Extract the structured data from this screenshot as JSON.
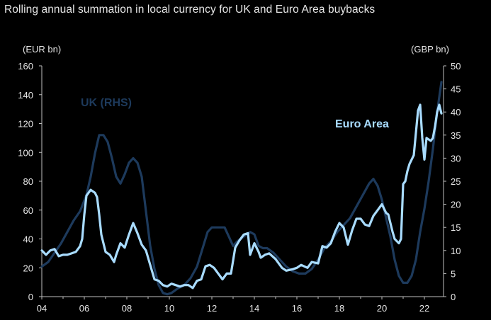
{
  "title": "Rolling annual summation in local currency for UK and Euro Area buybacks",
  "chart_data": {
    "type": "line",
    "title": "Rolling annual summation in local currency for UK and Euro Area buybacks",
    "x_ticks": [
      "04",
      "06",
      "08",
      "10",
      "12",
      "14",
      "16",
      "18",
      "20",
      "22"
    ],
    "y_left": {
      "label": "(EUR bn)",
      "ticks": [
        0,
        20,
        40,
        60,
        80,
        100,
        120,
        140,
        160
      ],
      "range": [
        0,
        160
      ]
    },
    "y_right": {
      "label": "(GBP bn)",
      "ticks": [
        0,
        5,
        10,
        15,
        20,
        25,
        30,
        35,
        40,
        45,
        50
      ],
      "range": [
        0,
        50
      ]
    },
    "x_range": [
      2004.0,
      2022.9
    ],
    "grid": false,
    "series": [
      {
        "name": "UK (RHS)",
        "axis": "right",
        "color": "#1d3a5c",
        "points": [
          [
            2004.0,
            6.5
          ],
          [
            2004.3,
            7.5
          ],
          [
            2004.6,
            9.5
          ],
          [
            2004.9,
            11.5
          ],
          [
            2005.2,
            14
          ],
          [
            2005.5,
            16.5
          ],
          [
            2005.8,
            18.5
          ],
          [
            2006.1,
            22
          ],
          [
            2006.3,
            26
          ],
          [
            2006.5,
            31
          ],
          [
            2006.7,
            35
          ],
          [
            2006.9,
            35
          ],
          [
            2007.1,
            33.5
          ],
          [
            2007.3,
            30
          ],
          [
            2007.5,
            26
          ],
          [
            2007.7,
            24.5
          ],
          [
            2007.9,
            26.5
          ],
          [
            2008.1,
            29
          ],
          [
            2008.3,
            30
          ],
          [
            2008.5,
            29
          ],
          [
            2008.7,
            26
          ],
          [
            2008.9,
            18.5
          ],
          [
            2009.1,
            11
          ],
          [
            2009.3,
            6
          ],
          [
            2009.5,
            2.5
          ],
          [
            2009.7,
            0.8
          ],
          [
            2009.9,
            0.5
          ],
          [
            2010.1,
            0.8
          ],
          [
            2010.4,
            1.8
          ],
          [
            2010.7,
            2.5
          ],
          [
            2011.0,
            4
          ],
          [
            2011.3,
            6.5
          ],
          [
            2011.6,
            11
          ],
          [
            2011.8,
            14
          ],
          [
            2012.0,
            15
          ],
          [
            2012.3,
            15
          ],
          [
            2012.6,
            15
          ],
          [
            2012.8,
            13
          ],
          [
            2013.0,
            11
          ],
          [
            2013.2,
            12
          ],
          [
            2013.5,
            13
          ],
          [
            2013.8,
            14
          ],
          [
            2014.0,
            13.5
          ],
          [
            2014.2,
            11
          ],
          [
            2014.4,
            10.5
          ],
          [
            2014.6,
            10.5
          ],
          [
            2014.9,
            9.5
          ],
          [
            2015.2,
            8
          ],
          [
            2015.5,
            6.5
          ],
          [
            2015.8,
            5.5
          ],
          [
            2016.1,
            5
          ],
          [
            2016.4,
            5
          ],
          [
            2016.7,
            6
          ],
          [
            2017.0,
            8
          ],
          [
            2017.3,
            10.5
          ],
          [
            2017.6,
            12
          ],
          [
            2017.9,
            14
          ],
          [
            2018.2,
            15.5
          ],
          [
            2018.5,
            17
          ],
          [
            2018.8,
            19.5
          ],
          [
            2019.1,
            22
          ],
          [
            2019.4,
            24.5
          ],
          [
            2019.6,
            25.5
          ],
          [
            2019.8,
            24
          ],
          [
            2020.0,
            21
          ],
          [
            2020.2,
            17
          ],
          [
            2020.4,
            13
          ],
          [
            2020.6,
            8
          ],
          [
            2020.8,
            4.5
          ],
          [
            2021.0,
            3
          ],
          [
            2021.2,
            3
          ],
          [
            2021.4,
            4.5
          ],
          [
            2021.6,
            8
          ],
          [
            2021.8,
            14
          ],
          [
            2022.0,
            19
          ],
          [
            2022.2,
            25
          ],
          [
            2022.4,
            32
          ],
          [
            2022.6,
            40
          ],
          [
            2022.8,
            46.5
          ]
        ]
      },
      {
        "name": "Euro Area",
        "axis": "left",
        "color": "#a9dcff",
        "points": [
          [
            2004.0,
            32
          ],
          [
            2004.2,
            29
          ],
          [
            2004.4,
            32
          ],
          [
            2004.6,
            33
          ],
          [
            2004.8,
            28
          ],
          [
            2005.0,
            29
          ],
          [
            2005.2,
            29
          ],
          [
            2005.4,
            30
          ],
          [
            2005.6,
            31
          ],
          [
            2005.8,
            35
          ],
          [
            2005.9,
            40
          ],
          [
            2006.0,
            57
          ],
          [
            2006.1,
            70
          ],
          [
            2006.3,
            74
          ],
          [
            2006.5,
            72
          ],
          [
            2006.6,
            69
          ],
          [
            2006.7,
            57
          ],
          [
            2006.8,
            43
          ],
          [
            2006.9,
            37
          ],
          [
            2007.0,
            31
          ],
          [
            2007.2,
            29
          ],
          [
            2007.4,
            24
          ],
          [
            2007.5,
            29
          ],
          [
            2007.7,
            37
          ],
          [
            2007.9,
            34
          ],
          [
            2008.1,
            43
          ],
          [
            2008.3,
            51
          ],
          [
            2008.5,
            44
          ],
          [
            2008.7,
            36
          ],
          [
            2008.9,
            32
          ],
          [
            2009.1,
            22
          ],
          [
            2009.3,
            12
          ],
          [
            2009.5,
            11
          ],
          [
            2009.7,
            8
          ],
          [
            2009.9,
            7
          ],
          [
            2010.1,
            9
          ],
          [
            2010.3,
            8
          ],
          [
            2010.5,
            7
          ],
          [
            2010.7,
            8
          ],
          [
            2010.9,
            8
          ],
          [
            2011.1,
            6
          ],
          [
            2011.3,
            11
          ],
          [
            2011.5,
            12
          ],
          [
            2011.7,
            21
          ],
          [
            2011.9,
            22
          ],
          [
            2012.1,
            20
          ],
          [
            2012.3,
            16
          ],
          [
            2012.5,
            12
          ],
          [
            2012.7,
            16
          ],
          [
            2012.9,
            16
          ],
          [
            2013.1,
            34
          ],
          [
            2013.3,
            39
          ],
          [
            2013.5,
            43
          ],
          [
            2013.7,
            44
          ],
          [
            2013.8,
            29
          ],
          [
            2014.0,
            37
          ],
          [
            2014.2,
            31
          ],
          [
            2014.3,
            27
          ],
          [
            2014.5,
            29
          ],
          [
            2014.7,
            30
          ],
          [
            2015.0,
            26
          ],
          [
            2015.3,
            20
          ],
          [
            2015.5,
            18
          ],
          [
            2015.8,
            19
          ],
          [
            2016.0,
            20
          ],
          [
            2016.2,
            22
          ],
          [
            2016.5,
            20
          ],
          [
            2016.7,
            24
          ],
          [
            2017.0,
            23
          ],
          [
            2017.2,
            35
          ],
          [
            2017.4,
            34
          ],
          [
            2017.6,
            37
          ],
          [
            2017.8,
            45
          ],
          [
            2018.0,
            51
          ],
          [
            2018.2,
            48
          ],
          [
            2018.4,
            36
          ],
          [
            2018.6,
            46
          ],
          [
            2018.8,
            54
          ],
          [
            2019.0,
            54
          ],
          [
            2019.2,
            50
          ],
          [
            2019.4,
            49
          ],
          [
            2019.6,
            56
          ],
          [
            2019.8,
            60
          ],
          [
            2020.0,
            64
          ],
          [
            2020.2,
            58
          ],
          [
            2020.3,
            57
          ],
          [
            2020.5,
            45
          ],
          [
            2020.6,
            40
          ],
          [
            2020.8,
            37
          ],
          [
            2020.9,
            40
          ],
          [
            2021.0,
            78
          ],
          [
            2021.1,
            80
          ],
          [
            2021.2,
            87
          ],
          [
            2021.3,
            92
          ],
          [
            2021.5,
            98
          ],
          [
            2021.7,
            129
          ],
          [
            2021.8,
            133
          ],
          [
            2021.9,
            110
          ],
          [
            2022.0,
            95
          ],
          [
            2022.1,
            110
          ],
          [
            2022.3,
            108
          ],
          [
            2022.4,
            110
          ],
          [
            2022.5,
            118
          ],
          [
            2022.6,
            128
          ],
          [
            2022.7,
            133
          ],
          [
            2022.8,
            127
          ]
        ]
      }
    ],
    "annotations": [
      {
        "text": "UK (RHS)",
        "color": "#1d3a5c"
      },
      {
        "text": "Euro Area",
        "color": "#a9dcff"
      }
    ]
  }
}
